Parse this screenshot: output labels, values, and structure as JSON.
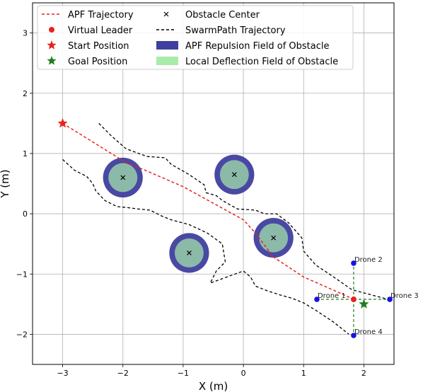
{
  "chart_data": {
    "type": "scatter",
    "xlabel": "X (m)",
    "ylabel": "Y (m)",
    "xlim": [
      -3.5,
      2.5
    ],
    "ylim": [
      -2.5,
      3.5
    ],
    "xticks": [
      -3,
      -2,
      -1,
      0,
      1,
      2
    ],
    "yticks": [
      -2,
      -1,
      0,
      1,
      2,
      3
    ],
    "grid": true,
    "legend": {
      "placement": "top-left",
      "entries": [
        {
          "label": "APF Trajectory",
          "marker": "dashed-line",
          "color": "#e8231f"
        },
        {
          "label": "Obstacle Center",
          "marker": "x",
          "color": "#000000"
        },
        {
          "label": "Virtual Leader",
          "marker": "dot",
          "color": "#e8231f"
        },
        {
          "label": "SwarmPath Trajectory",
          "marker": "dashed-line",
          "color": "#000000"
        },
        {
          "label": "Start Position",
          "marker": "star",
          "color": "#e8231f"
        },
        {
          "label": "APF Repulsion Field of Obstacle",
          "marker": "patch",
          "color": "#3f3f9f"
        },
        {
          "label": "Goal Position",
          "marker": "star",
          "color": "#1e7e1e"
        },
        {
          "label": "Local Deflection Field of Obstacle",
          "marker": "patch",
          "color": "#a9eba9"
        }
      ]
    },
    "obstacles": [
      {
        "x": -2.0,
        "y": 0.6,
        "repulsion_radius": 0.33,
        "deflection_radius": 0.24
      },
      {
        "x": -0.15,
        "y": 0.65,
        "repulsion_radius": 0.33,
        "deflection_radius": 0.24
      },
      {
        "x": 0.5,
        "y": -0.4,
        "repulsion_radius": 0.33,
        "deflection_radius": 0.24
      },
      {
        "x": -0.9,
        "y": -0.65,
        "repulsion_radius": 0.33,
        "deflection_radius": 0.24
      }
    ],
    "start": {
      "x": -3.0,
      "y": 1.5
    },
    "goal": {
      "x": 2.0,
      "y": -1.5
    },
    "virtual_leader": {
      "x": 1.83,
      "y": -1.42
    },
    "apf_trajectory": [
      [
        -3.0,
        1.5
      ],
      [
        -2.0,
        0.88
      ],
      [
        -1.0,
        0.45
      ],
      [
        0.0,
        -0.1
      ],
      [
        0.2,
        -0.32
      ],
      [
        0.5,
        -0.72
      ],
      [
        1.0,
        -1.05
      ],
      [
        1.5,
        -1.27
      ],
      [
        1.83,
        -1.42
      ]
    ],
    "swarmpath_upper": [
      [
        -2.4,
        1.5
      ],
      [
        -2.2,
        1.3
      ],
      [
        -1.95,
        1.08
      ],
      [
        -1.6,
        0.95
      ],
      [
        -1.3,
        0.93
      ],
      [
        -1.2,
        0.82
      ],
      [
        -0.9,
        0.65
      ],
      [
        -0.65,
        0.48
      ],
      [
        -0.62,
        0.35
      ],
      [
        -0.45,
        0.3
      ],
      [
        -0.35,
        0.22
      ],
      [
        -0.1,
        0.08
      ],
      [
        0.2,
        0.06
      ],
      [
        0.35,
        0.0
      ],
      [
        0.55,
        0.0
      ],
      [
        0.75,
        -0.15
      ],
      [
        0.97,
        -0.4
      ],
      [
        1.0,
        -0.62
      ],
      [
        1.2,
        -0.85
      ],
      [
        1.5,
        -1.05
      ],
      [
        1.8,
        -1.26
      ],
      [
        2.4,
        -1.42
      ]
    ],
    "swarmpath_lower": [
      [
        -3.0,
        0.9
      ],
      [
        -2.8,
        0.72
      ],
      [
        -2.6,
        0.62
      ],
      [
        -2.5,
        0.5
      ],
      [
        -2.45,
        0.38
      ],
      [
        -2.3,
        0.22
      ],
      [
        -2.1,
        0.12
      ],
      [
        -1.9,
        0.1
      ],
      [
        -1.75,
        0.08
      ],
      [
        -1.55,
        0.06
      ],
      [
        -1.35,
        -0.04
      ],
      [
        -1.2,
        -0.1
      ],
      [
        -0.9,
        -0.18
      ],
      [
        -0.6,
        -0.32
      ],
      [
        -0.35,
        -0.5
      ],
      [
        -0.3,
        -0.8
      ],
      [
        -0.45,
        -0.95
      ],
      [
        -0.55,
        -1.15
      ],
      [
        0.0,
        -0.95
      ],
      [
        0.12,
        -1.05
      ],
      [
        0.2,
        -1.2
      ],
      [
        0.4,
        -1.28
      ],
      [
        0.62,
        -1.35
      ],
      [
        0.8,
        -1.4
      ],
      [
        1.0,
        -1.48
      ],
      [
        1.2,
        -1.6
      ],
      [
        1.5,
        -1.8
      ],
      [
        1.75,
        -2.0
      ]
    ],
    "drones": [
      {
        "name": "Drone 1",
        "x": 1.22,
        "y": -1.42
      },
      {
        "name": "Drone 2",
        "x": 1.83,
        "y": -0.82
      },
      {
        "name": "Drone 3",
        "x": 2.43,
        "y": -1.42
      },
      {
        "name": "Drone 4",
        "x": 1.83,
        "y": -2.02
      }
    ]
  }
}
